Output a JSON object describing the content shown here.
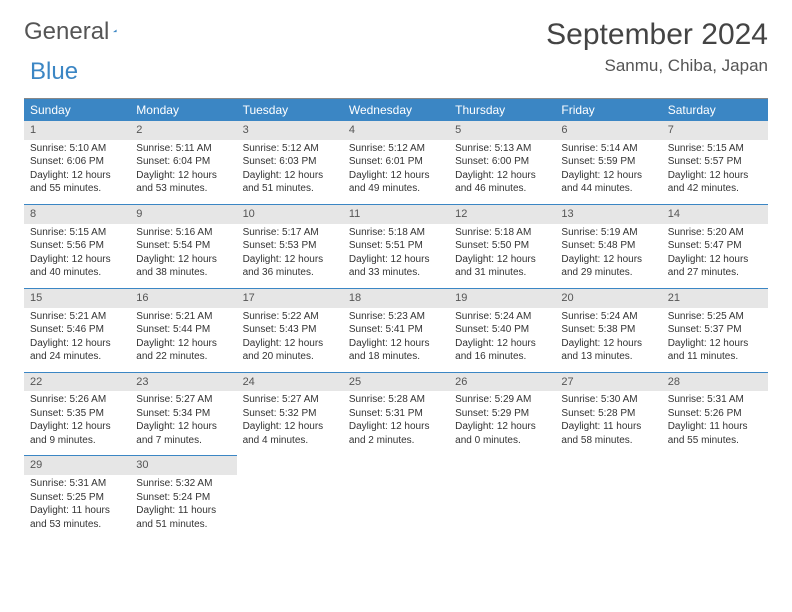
{
  "brand": {
    "word1": "General",
    "word2": "Blue",
    "accent_color": "#3b86c4"
  },
  "title": "September 2024",
  "location": "Sanmu, Chiba, Japan",
  "colors": {
    "header_bg": "#3b86c4",
    "header_fg": "#ffffff",
    "daynum_bg": "#e6e6e6",
    "rule": "#3b86c4"
  },
  "dow": [
    "Sunday",
    "Monday",
    "Tuesday",
    "Wednesday",
    "Thursday",
    "Friday",
    "Saturday"
  ],
  "weeks": [
    [
      {
        "n": "1",
        "sr": "Sunrise: 5:10 AM",
        "ss": "Sunset: 6:06 PM",
        "dl1": "Daylight: 12 hours",
        "dl2": "and 55 minutes."
      },
      {
        "n": "2",
        "sr": "Sunrise: 5:11 AM",
        "ss": "Sunset: 6:04 PM",
        "dl1": "Daylight: 12 hours",
        "dl2": "and 53 minutes."
      },
      {
        "n": "3",
        "sr": "Sunrise: 5:12 AM",
        "ss": "Sunset: 6:03 PM",
        "dl1": "Daylight: 12 hours",
        "dl2": "and 51 minutes."
      },
      {
        "n": "4",
        "sr": "Sunrise: 5:12 AM",
        "ss": "Sunset: 6:01 PM",
        "dl1": "Daylight: 12 hours",
        "dl2": "and 49 minutes."
      },
      {
        "n": "5",
        "sr": "Sunrise: 5:13 AM",
        "ss": "Sunset: 6:00 PM",
        "dl1": "Daylight: 12 hours",
        "dl2": "and 46 minutes."
      },
      {
        "n": "6",
        "sr": "Sunrise: 5:14 AM",
        "ss": "Sunset: 5:59 PM",
        "dl1": "Daylight: 12 hours",
        "dl2": "and 44 minutes."
      },
      {
        "n": "7",
        "sr": "Sunrise: 5:15 AM",
        "ss": "Sunset: 5:57 PM",
        "dl1": "Daylight: 12 hours",
        "dl2": "and 42 minutes."
      }
    ],
    [
      {
        "n": "8",
        "sr": "Sunrise: 5:15 AM",
        "ss": "Sunset: 5:56 PM",
        "dl1": "Daylight: 12 hours",
        "dl2": "and 40 minutes."
      },
      {
        "n": "9",
        "sr": "Sunrise: 5:16 AM",
        "ss": "Sunset: 5:54 PM",
        "dl1": "Daylight: 12 hours",
        "dl2": "and 38 minutes."
      },
      {
        "n": "10",
        "sr": "Sunrise: 5:17 AM",
        "ss": "Sunset: 5:53 PM",
        "dl1": "Daylight: 12 hours",
        "dl2": "and 36 minutes."
      },
      {
        "n": "11",
        "sr": "Sunrise: 5:18 AM",
        "ss": "Sunset: 5:51 PM",
        "dl1": "Daylight: 12 hours",
        "dl2": "and 33 minutes."
      },
      {
        "n": "12",
        "sr": "Sunrise: 5:18 AM",
        "ss": "Sunset: 5:50 PM",
        "dl1": "Daylight: 12 hours",
        "dl2": "and 31 minutes."
      },
      {
        "n": "13",
        "sr": "Sunrise: 5:19 AM",
        "ss": "Sunset: 5:48 PM",
        "dl1": "Daylight: 12 hours",
        "dl2": "and 29 minutes."
      },
      {
        "n": "14",
        "sr": "Sunrise: 5:20 AM",
        "ss": "Sunset: 5:47 PM",
        "dl1": "Daylight: 12 hours",
        "dl2": "and 27 minutes."
      }
    ],
    [
      {
        "n": "15",
        "sr": "Sunrise: 5:21 AM",
        "ss": "Sunset: 5:46 PM",
        "dl1": "Daylight: 12 hours",
        "dl2": "and 24 minutes."
      },
      {
        "n": "16",
        "sr": "Sunrise: 5:21 AM",
        "ss": "Sunset: 5:44 PM",
        "dl1": "Daylight: 12 hours",
        "dl2": "and 22 minutes."
      },
      {
        "n": "17",
        "sr": "Sunrise: 5:22 AM",
        "ss": "Sunset: 5:43 PM",
        "dl1": "Daylight: 12 hours",
        "dl2": "and 20 minutes."
      },
      {
        "n": "18",
        "sr": "Sunrise: 5:23 AM",
        "ss": "Sunset: 5:41 PM",
        "dl1": "Daylight: 12 hours",
        "dl2": "and 18 minutes."
      },
      {
        "n": "19",
        "sr": "Sunrise: 5:24 AM",
        "ss": "Sunset: 5:40 PM",
        "dl1": "Daylight: 12 hours",
        "dl2": "and 16 minutes."
      },
      {
        "n": "20",
        "sr": "Sunrise: 5:24 AM",
        "ss": "Sunset: 5:38 PM",
        "dl1": "Daylight: 12 hours",
        "dl2": "and 13 minutes."
      },
      {
        "n": "21",
        "sr": "Sunrise: 5:25 AM",
        "ss": "Sunset: 5:37 PM",
        "dl1": "Daylight: 12 hours",
        "dl2": "and 11 minutes."
      }
    ],
    [
      {
        "n": "22",
        "sr": "Sunrise: 5:26 AM",
        "ss": "Sunset: 5:35 PM",
        "dl1": "Daylight: 12 hours",
        "dl2": "and 9 minutes."
      },
      {
        "n": "23",
        "sr": "Sunrise: 5:27 AM",
        "ss": "Sunset: 5:34 PM",
        "dl1": "Daylight: 12 hours",
        "dl2": "and 7 minutes."
      },
      {
        "n": "24",
        "sr": "Sunrise: 5:27 AM",
        "ss": "Sunset: 5:32 PM",
        "dl1": "Daylight: 12 hours",
        "dl2": "and 4 minutes."
      },
      {
        "n": "25",
        "sr": "Sunrise: 5:28 AM",
        "ss": "Sunset: 5:31 PM",
        "dl1": "Daylight: 12 hours",
        "dl2": "and 2 minutes."
      },
      {
        "n": "26",
        "sr": "Sunrise: 5:29 AM",
        "ss": "Sunset: 5:29 PM",
        "dl1": "Daylight: 12 hours",
        "dl2": "and 0 minutes."
      },
      {
        "n": "27",
        "sr": "Sunrise: 5:30 AM",
        "ss": "Sunset: 5:28 PM",
        "dl1": "Daylight: 11 hours",
        "dl2": "and 58 minutes."
      },
      {
        "n": "28",
        "sr": "Sunrise: 5:31 AM",
        "ss": "Sunset: 5:26 PM",
        "dl1": "Daylight: 11 hours",
        "dl2": "and 55 minutes."
      }
    ],
    [
      {
        "n": "29",
        "sr": "Sunrise: 5:31 AM",
        "ss": "Sunset: 5:25 PM",
        "dl1": "Daylight: 11 hours",
        "dl2": "and 53 minutes."
      },
      {
        "n": "30",
        "sr": "Sunrise: 5:32 AM",
        "ss": "Sunset: 5:24 PM",
        "dl1": "Daylight: 11 hours",
        "dl2": "and 51 minutes."
      },
      null,
      null,
      null,
      null,
      null
    ]
  ]
}
